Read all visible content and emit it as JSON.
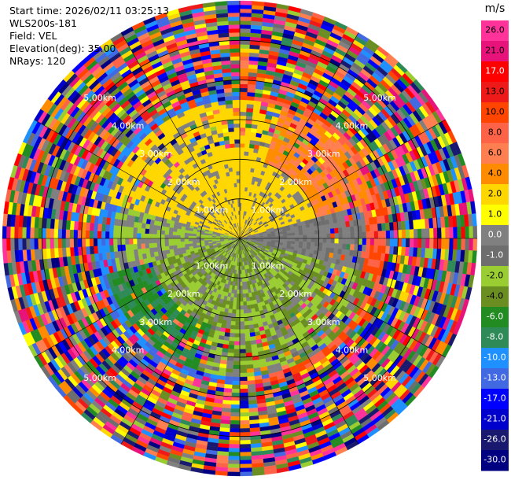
{
  "info": {
    "start_time": "Start time: 2026/02/11 03:25:13",
    "instrument": "WLS200s-181",
    "field": "Field: VEL",
    "elevation": "Elevation(deg): 35.00",
    "nrays": "NRays: 120"
  },
  "colorbar": {
    "unit": "m/s",
    "ticks": [
      "26.0",
      "21.0",
      "17.0",
      "13.0",
      "10.0",
      "8.0",
      "6.0",
      "4.0",
      "2.0",
      "1.0",
      "0.0",
      "-1.0",
      "-2.0",
      "-4.0",
      "-6.0",
      "-8.0",
      "-10.0",
      "-13.0",
      "-17.0",
      "-21.0",
      "-26.0",
      "-30.0"
    ],
    "colors": [
      "#ff3399",
      "#e8137a",
      "#ff0000",
      "#ee1a1a",
      "#ff4500",
      "#ff6347",
      "#ff7f50",
      "#ff8c00",
      "#ffd700",
      "#ffff00",
      "#808080",
      "#6e6e6e",
      "#9acd32",
      "#6b8e23",
      "#228b22",
      "#2e8b57",
      "#1e90ff",
      "#4169e1",
      "#0000ff",
      "#0000cd",
      "#191970",
      "#000080"
    ]
  },
  "chart_data": {
    "type": "heatmap",
    "projection": "polar (PPI)",
    "field": "VEL",
    "units": "m/s",
    "n_rays": 120,
    "range_rings_km": [
      1.0,
      2.0,
      3.0,
      4.0,
      5.0
    ],
    "ring_labels": [
      "1.00km",
      "2.00km",
      "3.00km",
      "4.00km",
      "5.00km"
    ],
    "max_range_km": 5.0,
    "color_scale_min": -30.0,
    "color_scale_max": 26.0,
    "description_values": {
      "north_sector_velocity_m_s": 4.0,
      "south_sector_velocity_m_s": -2.0,
      "far_range": "noise"
    }
  }
}
